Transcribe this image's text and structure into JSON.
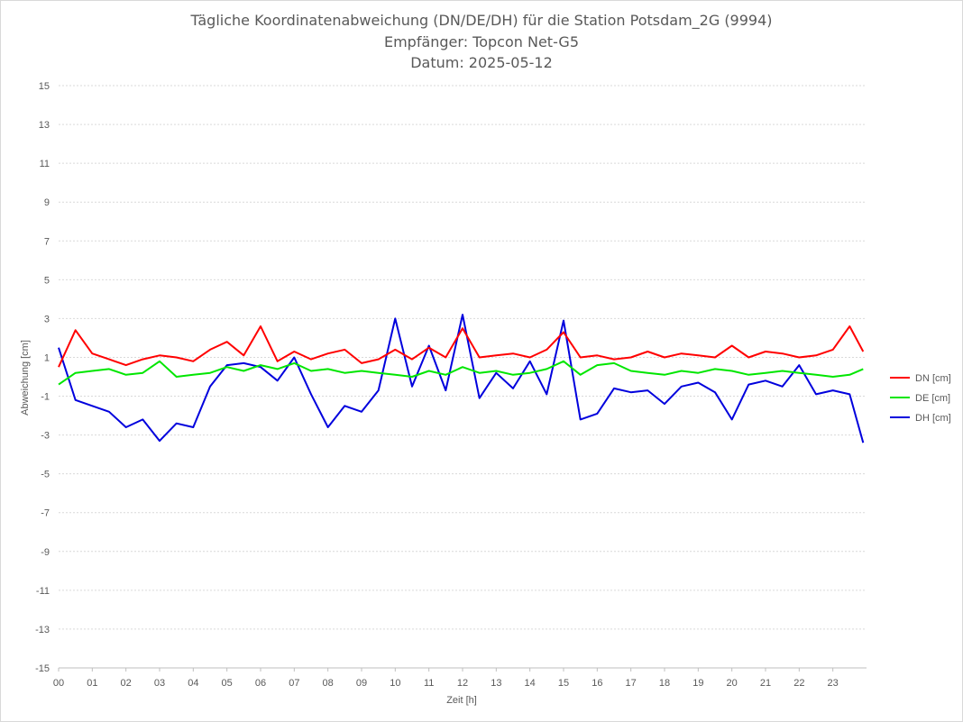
{
  "chart_data": {
    "type": "line",
    "title_lines": [
      "Tägliche Koordinatenabweichung (DN/DE/DH) für die Station Potsdam_2G (9994)",
      "Empfänger: Topcon Net-G5",
      "Datum: 2025-05-12"
    ],
    "xlabel": "Zeit [h]",
    "ylabel": "Abweichung [cm]",
    "xlim": [
      0,
      24
    ],
    "ylim": [
      -15,
      15
    ],
    "x_ticks": [
      "00",
      "01",
      "02",
      "03",
      "04",
      "05",
      "06",
      "07",
      "08",
      "09",
      "10",
      "11",
      "12",
      "13",
      "14",
      "15",
      "16",
      "17",
      "18",
      "19",
      "20",
      "21",
      "22",
      "23"
    ],
    "y_ticks": [
      15,
      13,
      11,
      9,
      7,
      5,
      3,
      1,
      -1,
      -3,
      -5,
      -7,
      -9,
      -11,
      -13,
      -15
    ],
    "y_grid": true,
    "legend_position": "right",
    "series": [
      {
        "name": "DN [cm]",
        "color": "#ff0000",
        "x": [
          0,
          0.5,
          1,
          1.5,
          2,
          2.5,
          3,
          3.5,
          4,
          4.5,
          5,
          5.5,
          6,
          6.5,
          7,
          7.5,
          8,
          8.5,
          9,
          9.5,
          10,
          10.5,
          11,
          11.5,
          12,
          12.5,
          13,
          13.5,
          14,
          14.5,
          15,
          15.5,
          16,
          16.5,
          17,
          17.5,
          18,
          18.5,
          19,
          19.5,
          20,
          20.5,
          21,
          21.5,
          22,
          22.5,
          23,
          23.5,
          23.9
        ],
        "y": [
          0.5,
          2.4,
          1.2,
          0.9,
          0.6,
          0.9,
          1.1,
          1.0,
          0.8,
          1.4,
          1.8,
          1.1,
          2.6,
          0.8,
          1.3,
          0.9,
          1.2,
          1.4,
          0.7,
          0.9,
          1.4,
          0.9,
          1.5,
          1.0,
          2.5,
          1.0,
          1.1,
          1.2,
          1.0,
          1.4,
          2.3,
          1.0,
          1.1,
          0.9,
          1.0,
          1.3,
          1.0,
          1.2,
          1.1,
          1.0,
          1.6,
          1.0,
          1.3,
          1.2,
          1.0,
          1.1,
          1.4,
          2.6,
          1.3
        ]
      },
      {
        "name": "DE [cm]",
        "color": "#00e600",
        "x": [
          0,
          0.5,
          1,
          1.5,
          2,
          2.5,
          3,
          3.5,
          4,
          4.5,
          5,
          5.5,
          6,
          6.5,
          7,
          7.5,
          8,
          8.5,
          9,
          9.5,
          10,
          10.5,
          11,
          11.5,
          12,
          12.5,
          13,
          13.5,
          14,
          14.5,
          15,
          15.5,
          16,
          16.5,
          17,
          17.5,
          18,
          18.5,
          19,
          19.5,
          20,
          20.5,
          21,
          21.5,
          22,
          22.5,
          23,
          23.5,
          23.9
        ],
        "y": [
          -0.4,
          0.2,
          0.3,
          0.4,
          0.1,
          0.2,
          0.8,
          0.0,
          0.1,
          0.2,
          0.5,
          0.3,
          0.6,
          0.4,
          0.7,
          0.3,
          0.4,
          0.2,
          0.3,
          0.2,
          0.1,
          0.0,
          0.3,
          0.1,
          0.5,
          0.2,
          0.3,
          0.1,
          0.2,
          0.4,
          0.8,
          0.1,
          0.6,
          0.7,
          0.3,
          0.2,
          0.1,
          0.3,
          0.2,
          0.4,
          0.3,
          0.1,
          0.2,
          0.3,
          0.2,
          0.1,
          0.0,
          0.1,
          0.4
        ]
      },
      {
        "name": "DH [cm]",
        "color": "#0000dd",
        "x": [
          0,
          0.5,
          1,
          1.5,
          2,
          2.5,
          3,
          3.5,
          4,
          4.5,
          5,
          5.5,
          6,
          6.5,
          7,
          7.5,
          8,
          8.5,
          9,
          9.5,
          10,
          10.5,
          11,
          11.5,
          12,
          12.5,
          13,
          13.5,
          14,
          14.5,
          15,
          15.5,
          16,
          16.5,
          17,
          17.5,
          18,
          18.5,
          19,
          19.5,
          20,
          20.5,
          21,
          21.5,
          22,
          22.5,
          23,
          23.5,
          23.9
        ],
        "y": [
          1.5,
          -1.2,
          -1.5,
          -1.8,
          -2.6,
          -2.2,
          -3.3,
          -2.4,
          -2.6,
          -0.5,
          0.6,
          0.7,
          0.5,
          -0.2,
          1.0,
          -0.9,
          -2.6,
          -1.5,
          -1.8,
          -0.7,
          3.0,
          -0.5,
          1.6,
          -0.7,
          3.2,
          -1.1,
          0.2,
          -0.6,
          0.8,
          -0.9,
          2.9,
          -2.2,
          -1.9,
          -0.6,
          -0.8,
          -0.7,
          -1.4,
          -0.5,
          -0.3,
          -0.8,
          -2.2,
          -0.4,
          -0.2,
          -0.5,
          0.6,
          -0.9,
          -0.7,
          -0.9,
          -3.4
        ]
      }
    ]
  }
}
